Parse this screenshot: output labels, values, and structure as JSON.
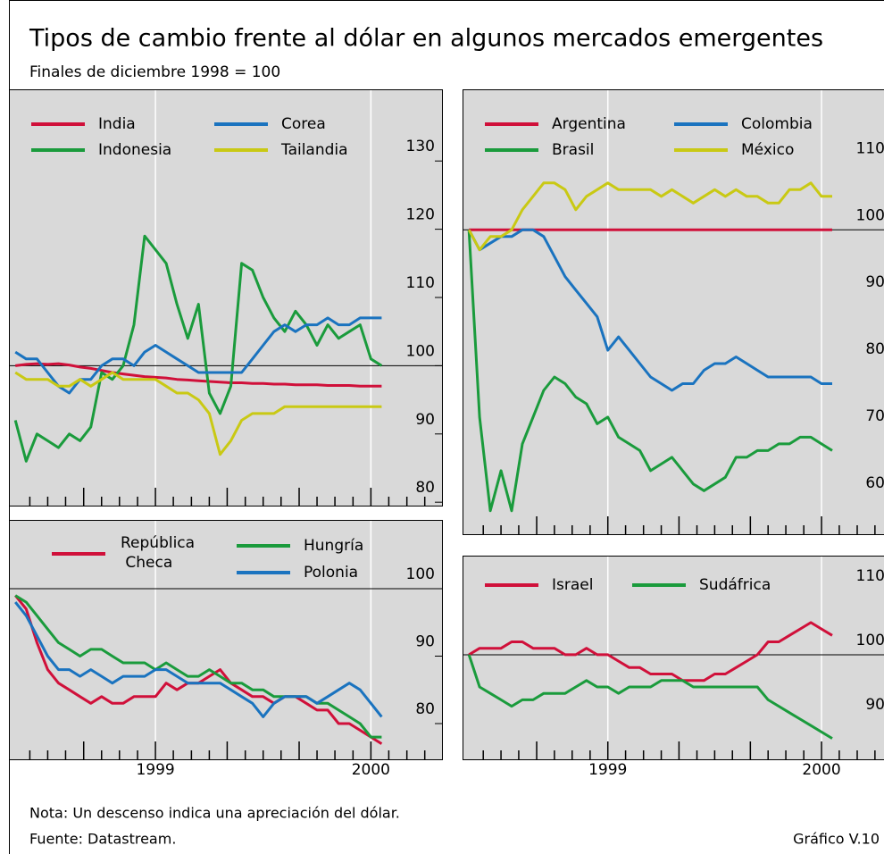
{
  "title": "Tipos de cambio frente al dólar en algunos mercados emergentes",
  "subtitle": "Finales de diciembre 1998 = 100",
  "note": "Nota: Un descenso indica una apreciación del dólar.",
  "source": "Fuente: Datastream.",
  "figure": "Gráfico V.10",
  "chart_data": [
    {
      "type": "line",
      "x": [
        1998.35,
        1998.4,
        1998.45,
        1998.5,
        1998.55,
        1998.6,
        1998.65,
        1998.7,
        1998.75,
        1998.8,
        1998.85,
        1998.9,
        1998.95,
        1999,
        1999.05,
        1999.1,
        1999.15,
        1999.2,
        1999.25,
        1999.3,
        1999.35,
        1999.4,
        1999.45,
        1999.5,
        1999.55,
        1999.6,
        1999.65,
        1999.7,
        1999.75,
        1999.8,
        1999.85,
        1999.9,
        1999.95,
        2000,
        2000.05
      ],
      "series": [
        {
          "name": "India",
          "color": "#d0103a",
          "values": [
            100,
            100.2,
            100.3,
            100.2,
            100.3,
            100.1,
            99.8,
            99.6,
            99.3,
            99,
            98.8,
            98.6,
            98.4,
            98.3,
            98.2,
            98,
            97.9,
            97.8,
            97.7,
            97.6,
            97.5,
            97.5,
            97.4,
            97.4,
            97.3,
            97.3,
            97.2,
            97.2,
            97.2,
            97.1,
            97.1,
            97.1,
            97,
            97,
            97
          ]
        },
        {
          "name": "Indonesia",
          "color": "#1a9b3c",
          "values": [
            92,
            86,
            90,
            89,
            88,
            90,
            89,
            91,
            99,
            98,
            100,
            106,
            119,
            117,
            115,
            109,
            104,
            109,
            96,
            93,
            97,
            115,
            114,
            110,
            107,
            105,
            108,
            106,
            103,
            106,
            104,
            105,
            106,
            101,
            100
          ]
        },
        {
          "name": "Corea",
          "color": "#1a73bf",
          "values": [
            102,
            101,
            101,
            99,
            97,
            96,
            98,
            98,
            100,
            101,
            101,
            100,
            102,
            103,
            102,
            101,
            100,
            99,
            99,
            99,
            99,
            99,
            101,
            103,
            105,
            106,
            105,
            106,
            106,
            107,
            106,
            106,
            107,
            107,
            107
          ]
        },
        {
          "name": "Tailandia",
          "color": "#c9c914",
          "values": [
            99,
            98,
            98,
            98,
            97,
            97,
            98,
            97,
            98,
            99,
            98,
            98,
            98,
            98,
            97,
            96,
            96,
            95,
            93,
            87,
            89,
            92,
            93,
            93,
            93,
            94,
            94,
            94,
            94,
            94,
            94,
            94,
            94,
            94,
            94
          ]
        }
      ],
      "xlim": [
        1998.32,
        2000.33
      ],
      "xgrid": [
        1999,
        2000
      ],
      "xminor": [
        1998.417,
        1998.5,
        1998.583,
        1998.667,
        1998.75,
        1998.833,
        1998.917,
        1999,
        1999.083,
        1999.167,
        1999.25,
        1999.333,
        1999.417,
        1999.5,
        1999.583,
        1999.667,
        1999.75,
        1999.833,
        1999.917,
        2000,
        2000.083,
        2000.167,
        2000.25
      ],
      "ylim": [
        79.5,
        140.5
      ],
      "yticks": [
        80,
        90,
        100,
        110,
        120,
        130
      ],
      "hline": 100
    },
    {
      "type": "line",
      "x": [
        1998.35,
        1998.4,
        1998.45,
        1998.5,
        1998.55,
        1998.6,
        1998.65,
        1998.7,
        1998.75,
        1998.8,
        1998.85,
        1998.9,
        1998.95,
        1999,
        1999.05,
        1999.1,
        1999.15,
        1999.2,
        1999.25,
        1999.3,
        1999.35,
        1999.4,
        1999.45,
        1999.5,
        1999.55,
        1999.6,
        1999.65,
        1999.7,
        1999.75,
        1999.8,
        1999.85,
        1999.9,
        1999.95,
        2000,
        2000.05
      ],
      "series": [
        {
          "name": "Argentina",
          "color": "#d0103a",
          "values": [
            100,
            100,
            100,
            100,
            100,
            100,
            100,
            100,
            100,
            100,
            100,
            100,
            100,
            100,
            100,
            100,
            100,
            100,
            100,
            100,
            100,
            100,
            100,
            100,
            100,
            100,
            100,
            100,
            100,
            100,
            100,
            100,
            100,
            100,
            100
          ]
        },
        {
          "name": "Brasil",
          "color": "#1a9b3c",
          "values": [
            100,
            72,
            58,
            64,
            58,
            68,
            72,
            76,
            78,
            77,
            75,
            74,
            71,
            72,
            69,
            68,
            67,
            64,
            65,
            66,
            64,
            62,
            61,
            62,
            63,
            66,
            66,
            67,
            67,
            68,
            68,
            69,
            69,
            68,
            67
          ]
        },
        {
          "name": "Colombia",
          "color": "#1a73bf",
          "values": [
            100,
            97,
            98,
            99,
            99,
            100,
            100,
            99,
            96,
            93,
            91,
            89,
            87,
            82,
            84,
            82,
            80,
            78,
            77,
            76,
            77,
            77,
            79,
            80,
            80,
            81,
            80,
            79,
            78,
            78,
            78,
            78,
            78,
            77,
            77
          ]
        },
        {
          "name": "México",
          "color": "#c9c914",
          "values": [
            100,
            97,
            99,
            99,
            100,
            103,
            105,
            107,
            107,
            106,
            103,
            105,
            106,
            107,
            106,
            106,
            106,
            106,
            105,
            106,
            105,
            104,
            105,
            106,
            105,
            106,
            105,
            105,
            104,
            104,
            106,
            106,
            107,
            105,
            105
          ]
        }
      ],
      "xlim": [
        1998.32,
        2000.33
      ],
      "xgrid": [
        1999,
        2000
      ],
      "xminor": [
        1998.417,
        1998.5,
        1998.583,
        1998.667,
        1998.75,
        1998.833,
        1998.917,
        1999,
        1999.083,
        1999.167,
        1999.25,
        1999.333,
        1999.417,
        1999.5,
        1999.583,
        1999.667,
        1999.75,
        1999.833,
        1999.917,
        2000,
        2000.083,
        2000.167,
        2000.25
      ],
      "ylim": [
        54.5,
        121
      ],
      "yticks": [
        60,
        70,
        80,
        90,
        100,
        110
      ],
      "hline": 100
    },
    {
      "type": "line",
      "x": [
        1998.35,
        1998.4,
        1998.45,
        1998.5,
        1998.55,
        1998.6,
        1998.65,
        1998.7,
        1998.75,
        1998.8,
        1998.85,
        1998.9,
        1998.95,
        1999,
        1999.05,
        1999.1,
        1999.15,
        1999.2,
        1999.25,
        1999.3,
        1999.35,
        1999.4,
        1999.45,
        1999.5,
        1999.55,
        1999.6,
        1999.65,
        1999.7,
        1999.75,
        1999.8,
        1999.85,
        1999.9,
        1999.95,
        2000,
        2000.05
      ],
      "series": [
        {
          "name": "República Checa",
          "color": "#d0103a",
          "values": [
            99,
            97,
            92,
            88,
            86,
            85,
            84,
            83,
            84,
            83,
            83,
            84,
            84,
            84,
            86,
            85,
            86,
            86,
            87,
            88,
            86,
            85,
            84,
            84,
            83,
            84,
            84,
            83,
            82,
            82,
            80,
            80,
            79,
            78,
            77
          ]
        },
        {
          "name": "Hungría",
          "color": "#1a9b3c",
          "values": [
            99,
            98,
            96,
            94,
            92,
            91,
            90,
            91,
            91,
            90,
            89,
            89,
            89,
            88,
            89,
            88,
            87,
            87,
            88,
            87,
            86,
            86,
            85,
            85,
            84,
            84,
            84,
            84,
            83,
            83,
            82,
            81,
            80,
            78,
            78
          ]
        },
        {
          "name": "Polonia",
          "color": "#1a73bf",
          "values": [
            98,
            96,
            93,
            90,
            88,
            88,
            87,
            88,
            87,
            86,
            87,
            87,
            87,
            88,
            88,
            87,
            86,
            86,
            86,
            86,
            85,
            84,
            83,
            81,
            83,
            84,
            84,
            84,
            83,
            84,
            85,
            86,
            85,
            83,
            81
          ]
        }
      ],
      "xlim": [
        1998.32,
        2000.33
      ],
      "xticks": [
        1999,
        2000
      ],
      "xminor": [
        1998.417,
        1998.5,
        1998.583,
        1998.667,
        1998.75,
        1998.833,
        1998.917,
        1999,
        1999.083,
        1999.167,
        1999.25,
        1999.333,
        1999.417,
        1999.5,
        1999.583,
        1999.667,
        1999.75,
        1999.833,
        1999.917,
        2000,
        2000.083,
        2000.167,
        2000.25
      ],
      "ylim": [
        74.7,
        110.2
      ],
      "yticks": [
        80,
        90,
        100
      ],
      "hline": 100
    },
    {
      "type": "line",
      "x": [
        1998.35,
        1998.4,
        1998.45,
        1998.5,
        1998.55,
        1998.6,
        1998.65,
        1998.7,
        1998.75,
        1998.8,
        1998.85,
        1998.9,
        1998.95,
        1999,
        1999.05,
        1999.1,
        1999.15,
        1999.2,
        1999.25,
        1999.3,
        1999.35,
        1999.4,
        1999.45,
        1999.5,
        1999.55,
        1999.6,
        1999.65,
        1999.7,
        1999.75,
        1999.8,
        1999.85,
        1999.9,
        1999.95,
        2000,
        2000.05
      ],
      "series": [
        {
          "name": "Israel",
          "color": "#d0103a",
          "values": [
            100,
            101,
            101,
            101,
            102,
            102,
            101,
            101,
            101,
            100,
            100,
            101,
            100,
            100,
            99,
            98,
            98,
            97,
            97,
            97,
            96,
            96,
            96,
            97,
            97,
            98,
            99,
            100,
            102,
            102,
            103,
            104,
            105,
            104,
            103
          ]
        },
        {
          "name": "Sudáfrica",
          "color": "#1a9b3c",
          "values": [
            100,
            95,
            94,
            93,
            92,
            93,
            93,
            94,
            94,
            94,
            95,
            96,
            95,
            95,
            94,
            95,
            95,
            95,
            96,
            96,
            96,
            95,
            95,
            95,
            95,
            95,
            95,
            95,
            93,
            92,
            91,
            90,
            89,
            88,
            87
          ]
        }
      ],
      "xlim": [
        1998.32,
        2000.33
      ],
      "xticks": [
        1999,
        2000
      ],
      "xminor": [
        1998.417,
        1998.5,
        1998.583,
        1998.667,
        1998.75,
        1998.833,
        1998.917,
        1999,
        1999.083,
        1999.167,
        1999.25,
        1999.333,
        1999.417,
        1999.5,
        1999.583,
        1999.667,
        1999.75,
        1999.833,
        1999.917,
        2000,
        2000.083,
        2000.167,
        2000.25
      ],
      "ylim": [
        83.75,
        115.4
      ],
      "yticks": [
        90,
        100,
        110
      ],
      "hline": 100
    }
  ]
}
